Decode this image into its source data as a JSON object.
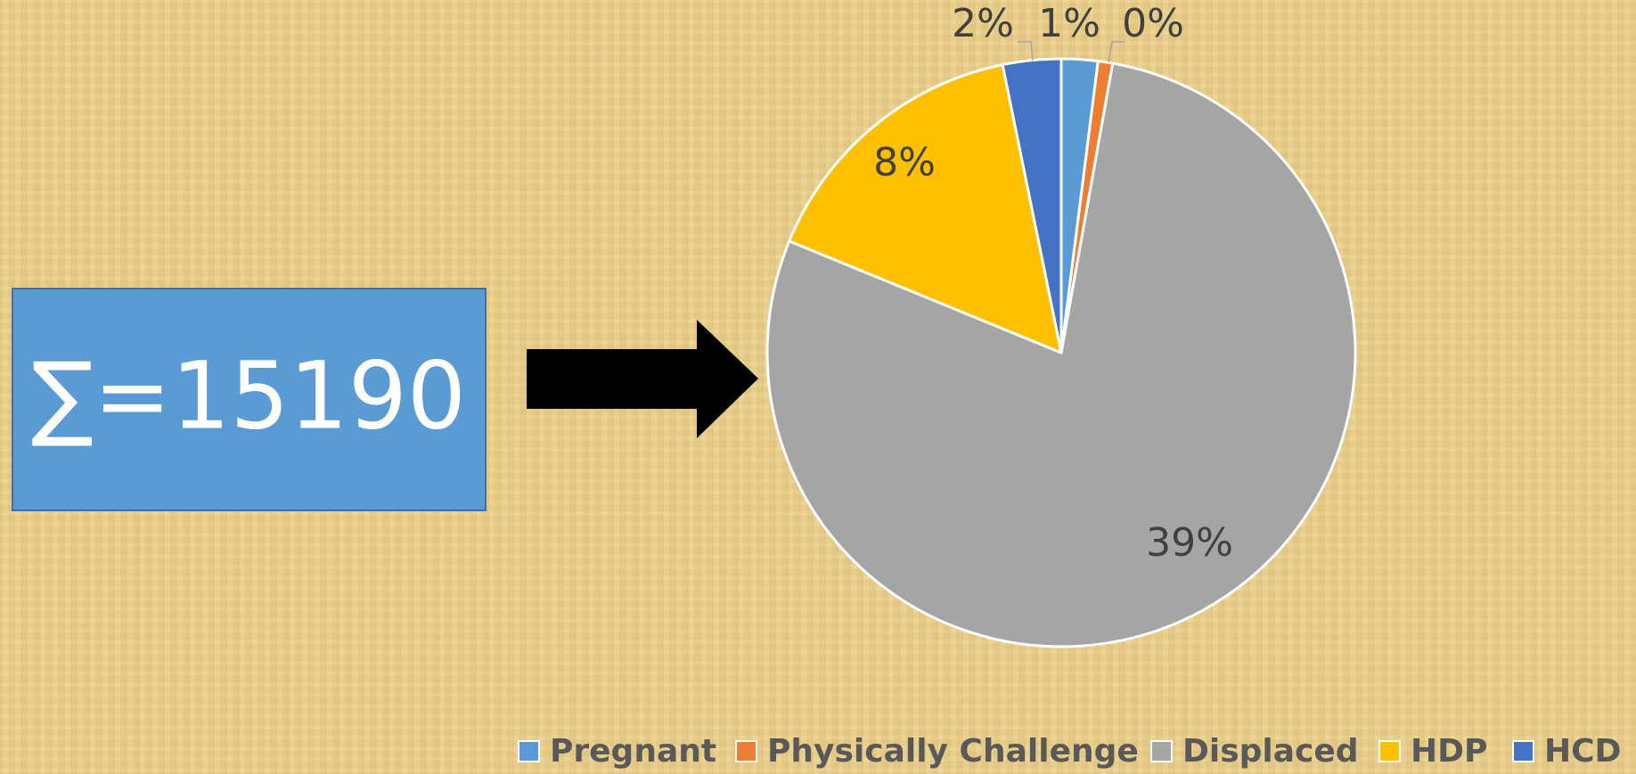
{
  "chart_data": {
    "type": "pie",
    "annotation": "∑=15190",
    "categories": [
      "Pregnant",
      "Physically Challenge",
      "Displaced",
      "HDP",
      "HCD"
    ],
    "values": [
      1.0,
      0.4,
      39.2,
      7.8,
      1.6
    ],
    "value_labels": [
      "1%",
      "0%",
      "39%",
      "8%",
      "2%"
    ],
    "colors": [
      "#5b9bd5",
      "#ed7d31",
      "#a5a5a5",
      "#ffc000",
      "#4472c4"
    ],
    "legend": "bottom"
  }
}
